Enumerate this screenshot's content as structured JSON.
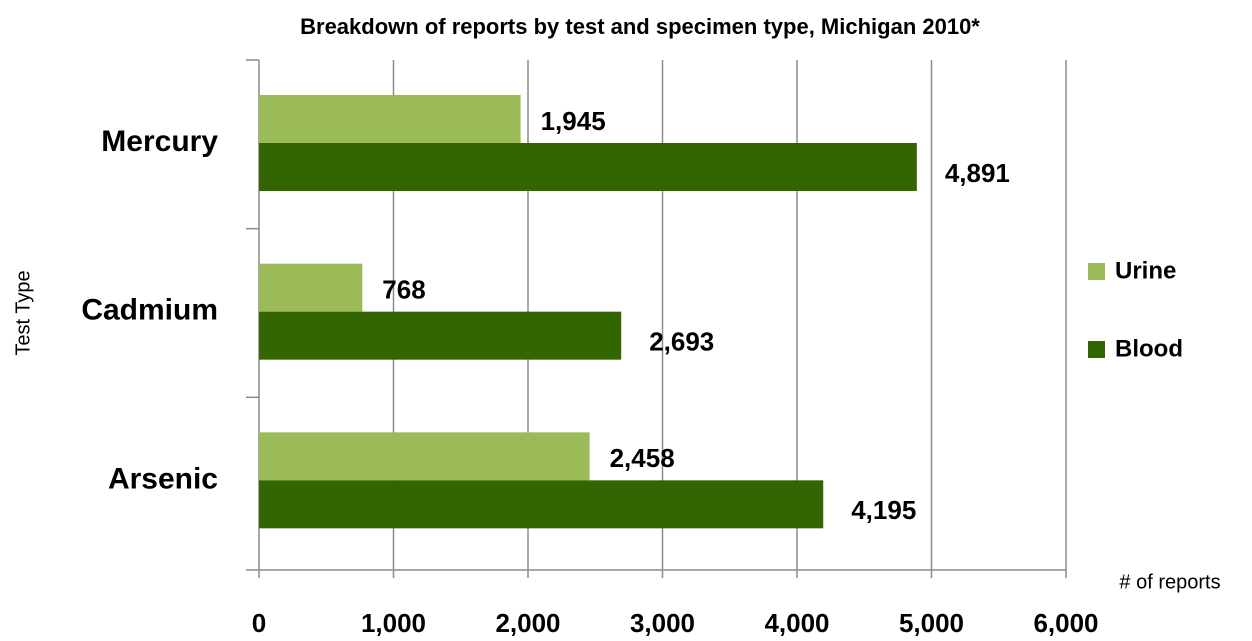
{
  "chart_data": {
    "type": "hbar",
    "title": "Breakdown of reports by test and specimen type, Michigan 2010*",
    "x_label": "# of reports",
    "y_label": "Test Type",
    "categories": [
      "Mercury",
      "Cadmium",
      "Arsenic"
    ],
    "series": [
      {
        "name": "Urine",
        "color": "#9bbb59",
        "values": [
          1945,
          768,
          2458
        ],
        "value_labels": [
          "1,945",
          "768",
          "2,458"
        ]
      },
      {
        "name": "Blood",
        "color": "#336600",
        "values": [
          4891,
          2693,
          4195
        ],
        "value_labels": [
          "4,891",
          "2,693",
          "4,195"
        ]
      }
    ],
    "xlim": [
      0,
      6000
    ],
    "xticks": [
      0,
      {
        "value": 1000,
        "label": "1,000"
      },
      {
        "value": 2000,
        "label": "2,000"
      },
      {
        "value": 3000,
        "label": "3,000"
      },
      {
        "value": 4000,
        "label": "4,000"
      },
      {
        "value": 5000,
        "label": "5,000"
      },
      {
        "value": 6000,
        "label": "6,000"
      }
    ],
    "grid": true,
    "legend": "right"
  }
}
